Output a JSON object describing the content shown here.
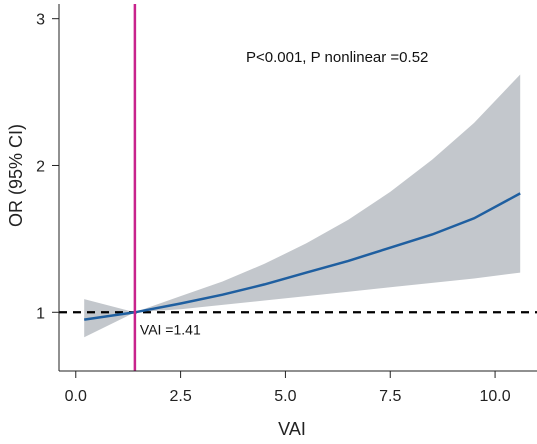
{
  "chart_data": {
    "type": "line",
    "title": "",
    "xlabel": "VAI",
    "ylabel": "OR (95% CI)",
    "xlim": [
      -0.4,
      11.0
    ],
    "ylim": [
      0.6,
      3.1
    ],
    "x_ticks": [
      0.0,
      2.5,
      5.0,
      7.5,
      10.0
    ],
    "x_tick_labels": [
      "0.0",
      "2.5",
      "5.0",
      "7.5",
      "10.0"
    ],
    "y_ticks": [
      1,
      2,
      3
    ],
    "y_tick_labels": [
      "1",
      "2",
      "3"
    ],
    "grid": false,
    "series": [
      {
        "role": "estimate",
        "color": "#1f5fa0",
        "x": [
          0.2,
          1.41,
          2.5,
          3.5,
          4.5,
          5.5,
          6.5,
          7.5,
          8.5,
          9.5,
          10.6
        ],
        "y": [
          0.95,
          1.0,
          1.06,
          1.12,
          1.19,
          1.27,
          1.35,
          1.44,
          1.53,
          1.64,
          1.81
        ]
      },
      {
        "role": "ci_band",
        "color": "#c3c7cc",
        "x": [
          0.2,
          1.41,
          2.5,
          3.5,
          4.5,
          5.5,
          6.5,
          7.5,
          8.5,
          9.5,
          10.6
        ],
        "lower": [
          0.83,
          1.0,
          1.02,
          1.05,
          1.08,
          1.11,
          1.14,
          1.17,
          1.2,
          1.23,
          1.27
        ],
        "upper": [
          1.09,
          1.0,
          1.11,
          1.21,
          1.33,
          1.47,
          1.63,
          1.82,
          2.04,
          2.29,
          2.62
        ]
      }
    ],
    "reference_lines": [
      {
        "orientation": "horizontal",
        "value": 1,
        "style": "dashed",
        "color": "#000000"
      },
      {
        "orientation": "vertical",
        "value": 1.41,
        "style": "solid",
        "color": "#c8238c"
      }
    ],
    "annotations": {
      "p_value": "P<0.001, P nonlinear =0.52",
      "vertical_line_label": "VAI =1.41"
    }
  }
}
